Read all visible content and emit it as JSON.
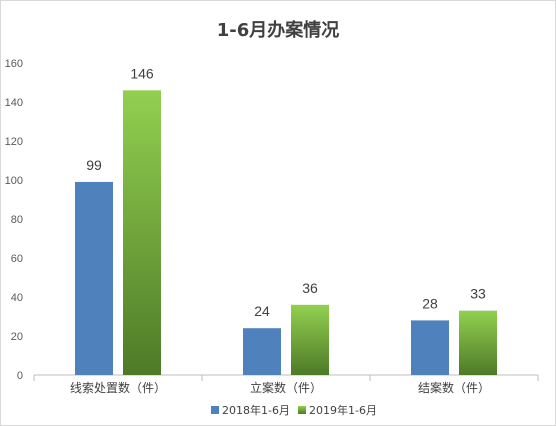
{
  "chart_data": {
    "type": "bar",
    "title": "1-6月办案情况",
    "categories": [
      "线索处置数（件）",
      "立案数（件）",
      "结案数（件）"
    ],
    "series": [
      {
        "name": "2018年1-6月",
        "values": [
          99,
          24,
          28
        ],
        "color": "#4f81bd"
      },
      {
        "name": "2019年1-6月",
        "values": [
          146,
          36,
          33
        ],
        "color_top": "#92d050",
        "color_bottom": "#4e7a27"
      }
    ],
    "ylim": [
      0,
      160
    ],
    "yticks": [
      "0",
      "20",
      "40",
      "60",
      "80",
      "100",
      "120",
      "140",
      "160"
    ],
    "xlabel": "",
    "ylabel": "",
    "grid": false,
    "legend_position": "bottom"
  }
}
